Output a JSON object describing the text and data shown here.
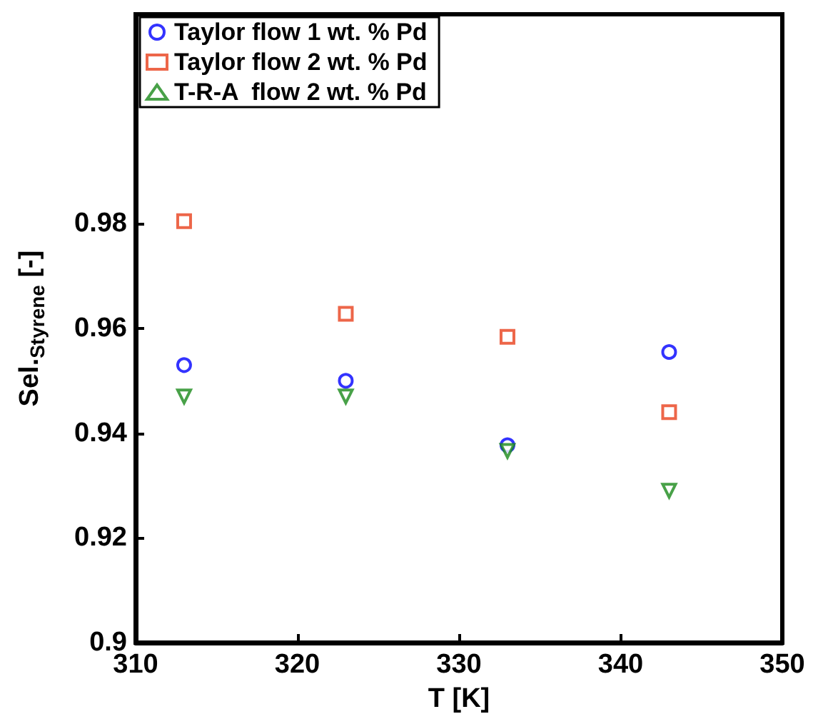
{
  "chart_data": {
    "type": "scatter",
    "xlabel": "T [K]",
    "ylabel": "Sel.$_{Styrene}$ [-]",
    "x": [
      313,
      323,
      333,
      343
    ],
    "series": [
      {
        "name": "Taylor flow 1 wt. % Pd",
        "color": "#0000ff",
        "marker": "circle",
        "values": [
          0.953,
          0.95,
          0.9377,
          0.9555
        ]
      },
      {
        "name": "Taylor flow 2 wt. % Pd",
        "color": "#e8401c",
        "marker": "square",
        "values": [
          0.9805,
          0.9628,
          0.9584,
          0.944
        ]
      },
      {
        "name": "T-R-A  flow 2 wt. % Pd",
        "color": "#1a8a1a",
        "marker": "triangle",
        "values": [
          0.947,
          0.947,
          0.9366,
          0.929
        ]
      }
    ],
    "xlim": [
      310,
      350
    ],
    "xticks": [
      310,
      320,
      330,
      340,
      350
    ],
    "ylim": [
      0.9,
      1.02
    ],
    "yticks": [
      0.9,
      0.92,
      0.94,
      0.96,
      0.98
    ],
    "grid": false,
    "legend": "top left"
  }
}
